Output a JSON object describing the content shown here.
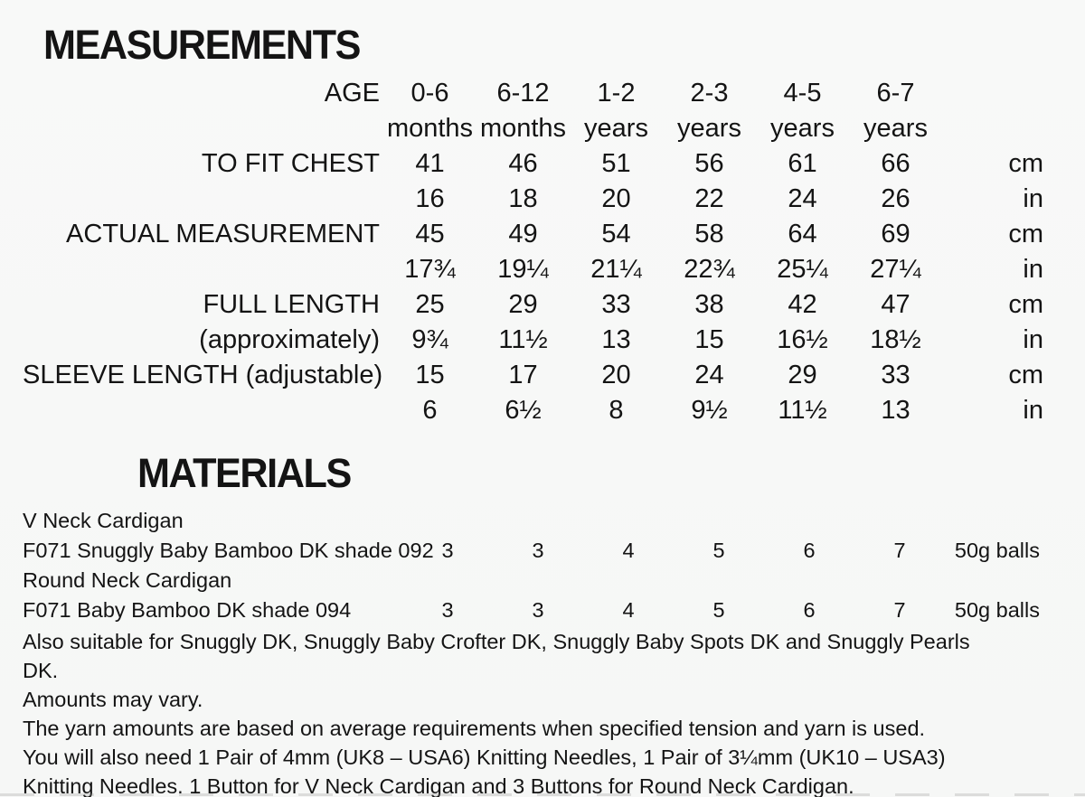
{
  "measurements": {
    "title": "MEASUREMENTS",
    "age_label": "AGE",
    "columns": [
      {
        "line1": "0-6",
        "line2": "months"
      },
      {
        "line1": "6-12",
        "line2": "months"
      },
      {
        "line1": "1-2",
        "line2": "years"
      },
      {
        "line1": "2-3",
        "line2": "years"
      },
      {
        "line1": "4-5",
        "line2": "years"
      },
      {
        "line1": "6-7",
        "line2": "years"
      }
    ],
    "rows": [
      {
        "label": "TO FIT CHEST",
        "values": [
          "41",
          "46",
          "51",
          "56",
          "61",
          "66"
        ],
        "unit": "cm"
      },
      {
        "label": "",
        "values": [
          "16",
          "18",
          "20",
          "22",
          "24",
          "26"
        ],
        "unit": "in"
      },
      {
        "label": "ACTUAL MEASUREMENT",
        "values": [
          "45",
          "49",
          "54",
          "58",
          "64",
          "69"
        ],
        "unit": "cm"
      },
      {
        "label": "",
        "values": [
          "17¾",
          "19¼",
          "21¼",
          "22¾",
          "25¼",
          "27¼"
        ],
        "unit": "in"
      },
      {
        "label": "FULL LENGTH",
        "values": [
          "25",
          "29",
          "33",
          "38",
          "42",
          "47"
        ],
        "unit": "cm"
      },
      {
        "label": "(approximately)",
        "values": [
          "9¾",
          "11½",
          "13",
          "15",
          "16½",
          "18½"
        ],
        "unit": "in"
      },
      {
        "label": "SLEEVE LENGTH (adjustable)",
        "values": [
          "15",
          "17",
          "20",
          "24",
          "29",
          "33"
        ],
        "unit": "cm"
      },
      {
        "label": "",
        "values": [
          "6",
          "6½",
          "8",
          "9½",
          "11½",
          "13"
        ],
        "unit": "in"
      }
    ]
  },
  "materials": {
    "title": "MATERIALS",
    "yarn_rows": [
      {
        "label": "V Neck Cardigan",
        "values": [
          "",
          "",
          "",
          "",
          "",
          ""
        ],
        "unit": ""
      },
      {
        "label": "F071 Snuggly Baby Bamboo DK shade 092",
        "values": [
          "3",
          "3",
          "4",
          "5",
          "6",
          "7"
        ],
        "unit": "50g balls"
      },
      {
        "label": "Round Neck Cardigan",
        "values": [
          "",
          "",
          "",
          "",
          "",
          ""
        ],
        "unit": ""
      },
      {
        "label": "F071 Baby Bamboo DK shade 094",
        "values": [
          "3",
          "3",
          "4",
          "5",
          "6",
          "7"
        ],
        "unit": "50g balls"
      }
    ],
    "notes": [
      "Also suitable for Snuggly DK, Snuggly Baby Crofter DK, Snuggly Baby Spots DK and Snuggly Pearls DK.",
      "Amounts may vary.",
      "The yarn amounts are based on average requirements when specified tension and yarn is used.",
      "You will also need 1 Pair of 4mm (UK8 – USA6) Knitting Needles, 1 Pair of 3¼mm (UK10 – USA3) Knitting Needles. 1 Button for V Neck Cardigan and 3 Buttons for Round Neck Cardigan."
    ]
  }
}
